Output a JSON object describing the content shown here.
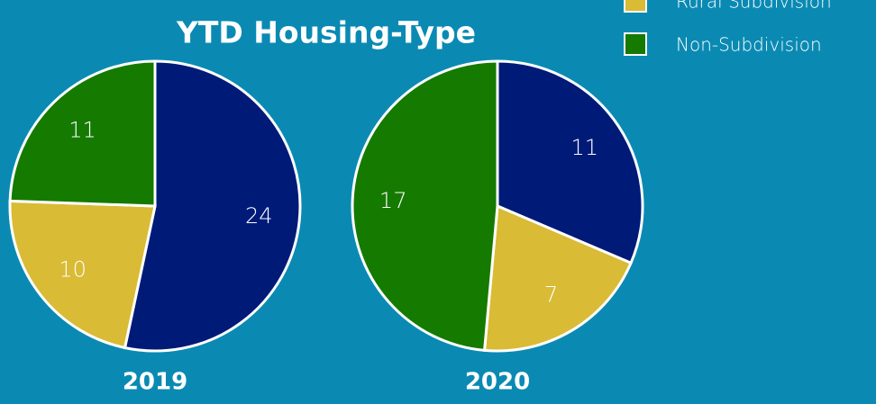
{
  "chart_data": {
    "type": "pie",
    "title": "YTD Housing-Type",
    "categories": [
      null,
      "Rural Subdivision",
      "Non-Subdivision"
    ],
    "colors": [
      "#001a78",
      "#d9bb35",
      "#157a00"
    ],
    "series": [
      {
        "name": "2019",
        "values": [
          24,
          10,
          11
        ]
      },
      {
        "name": "2020",
        "values": [
          11,
          7,
          17
        ]
      }
    ]
  }
}
